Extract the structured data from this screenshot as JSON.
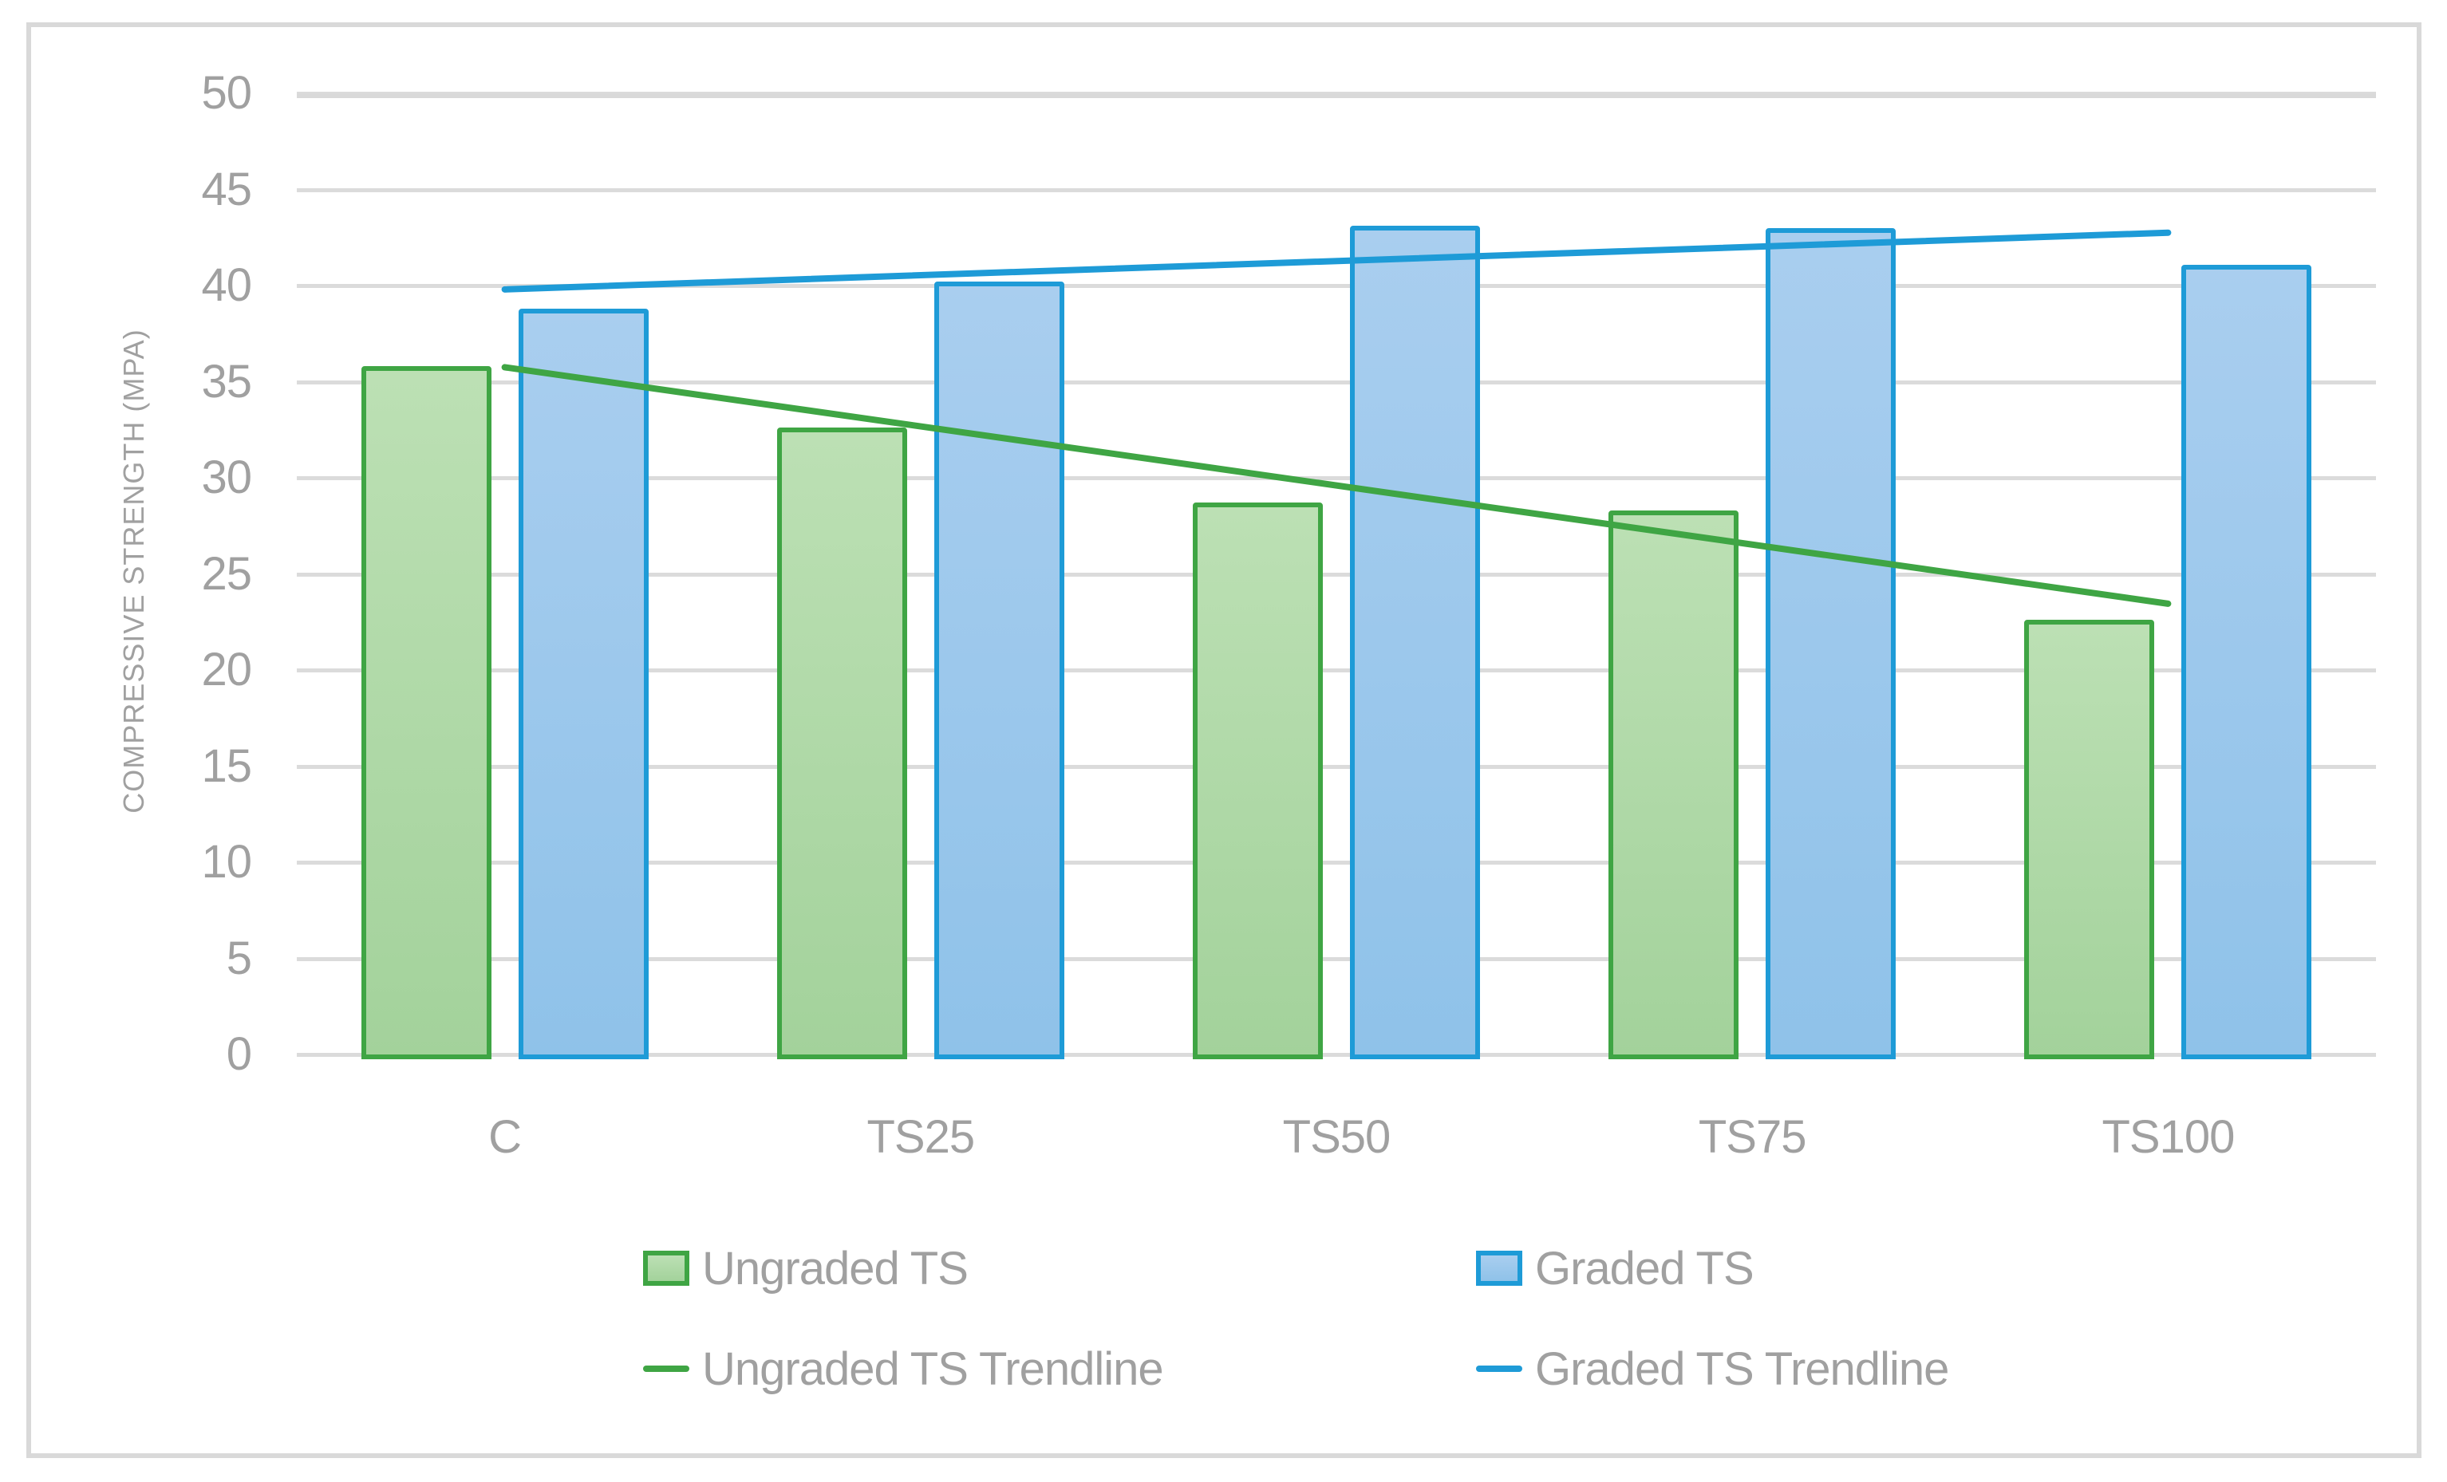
{
  "figure": {
    "background": "#FFFFFF",
    "border_color": "#D9D9D9"
  },
  "chart_data": {
    "type": "bar",
    "categories": [
      "C",
      "TS25",
      "TS50",
      "TS75",
      "TS100"
    ],
    "series": [
      {
        "name": "Ungraded TS",
        "values": [
          35.8,
          32.6,
          28.7,
          28.3,
          22.6
        ],
        "border_color": "#3FA544",
        "fill_top": "#BCE0B4",
        "fill_bottom": "#A3D29B"
      },
      {
        "name": "Graded TS",
        "values": [
          38.8,
          40.2,
          43.1,
          43.0,
          41.1
        ],
        "border_color": "#1E9BD7",
        "fill_top": "#A9CEEF",
        "fill_bottom": "#8FC2E9"
      }
    ],
    "trendlines": [
      {
        "name": "Ungraded TS Trendline",
        "color": "#3FA544",
        "start_value": 35.75,
        "end_value": 23.45
      },
      {
        "name": "Graded TS Trendline",
        "color": "#1E9BD7",
        "start_value": 39.8,
        "end_value": 42.75
      }
    ],
    "title": "",
    "xlabel": "",
    "ylabel": "COMPRESSIVE STRENGTH (MPA)",
    "ylim": [
      0,
      50
    ],
    "yticks": [
      0,
      5,
      10,
      15,
      20,
      25,
      30,
      35,
      40,
      45,
      50
    ],
    "grid": true,
    "grid_color": "#DBDBDB",
    "tick_label_color": "#A0A0A0",
    "legend_position": "bottom"
  }
}
